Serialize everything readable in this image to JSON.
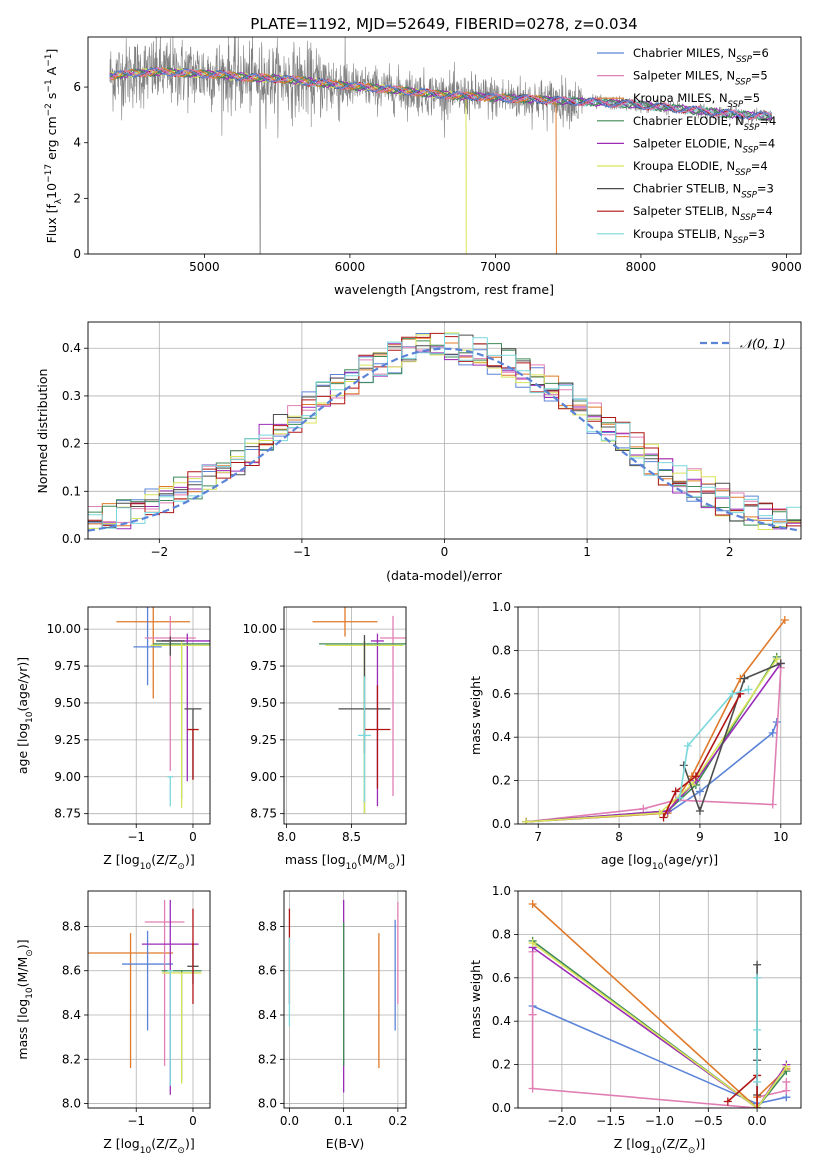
{
  "title": "PLATE=1192, MJD=52649, FIBERID=0278, z=0.034",
  "colors": {
    "Chabrier MILES": "#5b84d8",
    "Salpeter MILES": "#e07fb4",
    "Kroupa MILES": "#e07a2a",
    "Chabrier ELODIE": "#3f8a57",
    "Salpeter ELODIE": "#9b2cb8",
    "Kroupa ELODIE": "#d8e45a",
    "Chabrier STELIB": "#4d4d4d",
    "Salpeter STELIB": "#b01515",
    "Kroupa STELIB": "#7ad8dc",
    "data": "#808080",
    "gaussian": "#5b84d8",
    "grid": "#b0b0b0"
  },
  "chart_data": [
    {
      "id": "spectrum",
      "type": "line",
      "title": "PLATE=1192, MJD=52649, FIBERID=0278, z=0.034",
      "xlabel": "wavelength [Angstrom, rest frame]",
      "ylabel_parts": [
        "Flux [",
        "f",
        "λ",
        "10",
        "−17",
        " erg cm",
        "−2",
        " s",
        "−1",
        " A",
        "−1",
        "]"
      ],
      "xlim": [
        4200,
        9100
      ],
      "ylim": [
        0,
        7.8
      ],
      "xticks": [
        5000,
        6000,
        7000,
        8000,
        9000
      ],
      "yticks": [
        0,
        2,
        4,
        6
      ],
      "legend_position": "top-right",
      "legend": [
        {
          "model": "Chabrier MILES",
          "label": "Chabrier MILES, N",
          "sub": "SSP",
          "value": "=6"
        },
        {
          "model": "Salpeter MILES",
          "label": "Salpeter MILES, N",
          "sub": "SSP",
          "value": "=5"
        },
        {
          "model": "Kroupa MILES",
          "label": "Kroupa MILES, N",
          "sub": "SSP",
          "value": "=5"
        },
        {
          "model": "Chabrier ELODIE",
          "label": "Chabrier ELODIE, N",
          "sub": "SSP",
          "value": "=4"
        },
        {
          "model": "Salpeter ELODIE",
          "label": "Salpeter ELODIE, N",
          "sub": "SSP",
          "value": "=4"
        },
        {
          "model": "Kroupa ELODIE",
          "label": "Kroupa ELODIE, N",
          "sub": "SSP",
          "value": "=4"
        },
        {
          "model": "Chabrier STELIB",
          "label": "Chabrier STELIB, N",
          "sub": "SSP",
          "value": "=3"
        },
        {
          "model": "Salpeter STELIB",
          "label": "Salpeter STELIB, N",
          "sub": "SSP",
          "value": "=4"
        },
        {
          "model": "Kroupa STELIB",
          "label": "Kroupa STELIB, N",
          "sub": "SSP",
          "value": "=3"
        }
      ],
      "continuum_wavelength": [
        4350,
        4500,
        4700,
        4900,
        5100,
        5300,
        5500,
        5700,
        5900,
        6100,
        6300,
        6500,
        6700,
        6900,
        7100,
        7300,
        7500,
        7700,
        7900,
        8100,
        8300,
        8500,
        8700,
        8900
      ],
      "continuum_flux": [
        6.4,
        6.5,
        6.55,
        6.5,
        6.45,
        6.35,
        6.3,
        6.2,
        6.1,
        6.0,
        5.9,
        5.8,
        5.7,
        5.65,
        5.6,
        5.55,
        5.5,
        5.45,
        5.4,
        5.3,
        5.2,
        5.1,
        5.0,
        4.95
      ],
      "model_cutoffs": {
        "Kroupa ELODIE": 6800,
        "Kroupa MILES": 7420
      }
    },
    {
      "id": "residuals",
      "type": "histogram",
      "xlabel": "(data-model)/error",
      "ylabel": "Normed distribution",
      "xlim": [
        -2.5,
        2.5
      ],
      "ylim": [
        0,
        0.455
      ],
      "xticks": [
        -2,
        -1,
        0,
        1,
        2
      ],
      "yticks": [
        0.0,
        0.1,
        0.2,
        0.3,
        0.4
      ],
      "legend_position": "top-right",
      "legend": [
        {
          "label": "𝒩(0, 1)",
          "style": "dashed"
        }
      ],
      "bin_width": 0.1
    },
    {
      "id": "age-vs-Z",
      "type": "errorbar",
      "xlabel_parts": [
        "Z [log",
        "10",
        "(Z/Z",
        "⊙",
        ")]"
      ],
      "ylabel_parts": [
        "age  [log",
        "10",
        "(age/yr)]"
      ],
      "xlim": [
        -1.85,
        0.3
      ],
      "ylim": [
        8.68,
        10.15
      ],
      "xticks": [
        -1,
        0
      ],
      "yticks": [
        8.75,
        9.0,
        9.25,
        9.5,
        9.75,
        10.0
      ],
      "points": [
        {
          "model": "Kroupa MILES",
          "x": -0.7,
          "xerr": 0.65,
          "y": 10.05,
          "yerr_lo": 0.52,
          "yerr_hi": 0.1
        },
        {
          "model": "Chabrier MILES",
          "x": -0.8,
          "xerr": 0.25,
          "y": 9.88,
          "yerr_lo": 0.26,
          "yerr_hi": 0.27
        },
        {
          "model": "Salpeter MILES",
          "x": -0.4,
          "xerr": 0.45,
          "y": 9.94,
          "yerr_lo": 0.9,
          "yerr_hi": 0.15
        },
        {
          "model": "Salpeter ELODIE",
          "x": -0.1,
          "xerr": 0.45,
          "y": 9.92,
          "yerr_lo": 0.95,
          "yerr_hi": 0.05
        },
        {
          "model": "Chabrier ELODIE",
          "x": -0.2,
          "xerr": 0.5,
          "y": 9.9,
          "yerr_lo": 1.05,
          "yerr_hi": 0.0
        },
        {
          "model": "Kroupa ELODIE",
          "x": -0.2,
          "xerr": 0.55,
          "y": 9.89,
          "yerr_lo": 1.1,
          "yerr_hi": 0.02
        },
        {
          "model": "Chabrier STELIB",
          "x": -0.4,
          "xerr": 0.25,
          "y": 9.92,
          "yerr_lo": 0.1,
          "yerr_hi": 0.03
        },
        {
          "model": "Chabrier STELIB",
          "x": 0.0,
          "xerr": 0.15,
          "y": 9.46,
          "yerr_lo": 0.48,
          "yerr_hi": 0.0
        },
        {
          "model": "Salpeter STELIB",
          "x": 0.0,
          "xerr": 0.1,
          "y": 9.32,
          "yerr_lo": 0.34,
          "yerr_hi": 0.0
        },
        {
          "model": "Kroupa STELIB",
          "x": -0.4,
          "xerr": 0.05,
          "y": 9.0,
          "yerr_lo": 0.2,
          "yerr_hi": 0.0
        }
      ]
    },
    {
      "id": "age-vs-mass",
      "type": "errorbar",
      "xlabel_parts": [
        "mass [log",
        "10",
        "(M/M",
        "⊙",
        ")]"
      ],
      "ylabel_parts": [],
      "xlim": [
        7.98,
        8.92
      ],
      "ylim": [
        8.68,
        10.15
      ],
      "xticks": [
        8.0,
        8.5
      ],
      "yticks": [
        8.75,
        9.0,
        9.25,
        9.5,
        9.75,
        10.0
      ],
      "points": [
        {
          "model": "Kroupa MILES",
          "x": 8.45,
          "xerr": 0.25,
          "y": 10.05,
          "yerr_lo": 0.1,
          "yerr_hi": 0.1
        },
        {
          "model": "Salpeter MILES",
          "x": 8.82,
          "xerr": 0.1,
          "y": 9.94,
          "yerr_lo": 1.07,
          "yerr_hi": 0.15
        },
        {
          "model": "Salpeter ELODIE",
          "x": 8.7,
          "xerr": 0.05,
          "y": 9.92,
          "yerr_lo": 1.12,
          "yerr_hi": 0.05
        },
        {
          "model": "Chabrier ELODIE",
          "x": 8.6,
          "xerr": 0.35,
          "y": 9.9,
          "yerr_lo": 1.15,
          "yerr_hi": 0.02
        },
        {
          "model": "Kroupa ELODIE",
          "x": 8.6,
          "xerr": 0.3,
          "y": 9.89,
          "yerr_lo": 1.14,
          "yerr_hi": 0.02
        },
        {
          "model": "Chabrier STELIB",
          "x": 8.6,
          "xerr": 0.2,
          "y": 9.46,
          "yerr_lo": 0.3,
          "yerr_hi": 0.5
        },
        {
          "model": "Salpeter STELIB",
          "x": 8.7,
          "xerr": 0.1,
          "y": 9.32,
          "yerr_lo": 0.4,
          "yerr_hi": 0.3
        },
        {
          "model": "Kroupa STELIB",
          "x": 8.6,
          "xerr": 0.05,
          "y": 9.28,
          "yerr_lo": 0.45,
          "yerr_hi": 0.4
        }
      ]
    },
    {
      "id": "mass-weight-vs-age",
      "type": "line",
      "xlabel_parts": [
        "age  [log",
        "10",
        "(age/yr)]"
      ],
      "ylabel": "mass weight",
      "xlim": [
        6.75,
        10.25
      ],
      "ylim": [
        0,
        1.0
      ],
      "xticks": [
        7,
        8,
        9,
        10
      ],
      "yticks": [
        0.0,
        0.2,
        0.4,
        0.6,
        0.8,
        1.0
      ],
      "series": [
        {
          "model": "Chabrier MILES",
          "x": [
            6.85,
            8.6,
            9.0,
            9.9,
            9.95
          ],
          "y": [
            0.01,
            0.05,
            0.15,
            0.42,
            0.47
          ]
        },
        {
          "model": "Salpeter MILES",
          "x": [
            6.85,
            8.3,
            8.7,
            9.9,
            10.0
          ],
          "y": [
            0.01,
            0.07,
            0.11,
            0.09,
            0.72
          ]
        },
        {
          "model": "Kroupa MILES",
          "x": [
            6.85,
            8.6,
            8.9,
            9.5,
            10.05
          ],
          "y": [
            0.01,
            0.05,
            0.22,
            0.67,
            0.94
          ]
        },
        {
          "model": "Chabrier ELODIE",
          "x": [
            6.85,
            8.6,
            8.95,
            9.95
          ],
          "y": [
            0.01,
            0.06,
            0.18,
            0.77
          ]
        },
        {
          "model": "Salpeter ELODIE",
          "x": [
            6.85,
            8.6,
            8.95,
            10.0
          ],
          "y": [
            0.01,
            0.06,
            0.2,
            0.74
          ]
        },
        {
          "model": "Kroupa ELODIE",
          "x": [
            6.85,
            8.5,
            8.9,
            9.95
          ],
          "y": [
            0.01,
            0.05,
            0.18,
            0.76
          ]
        },
        {
          "model": "Chabrier STELIB",
          "x": [
            8.8,
            9.0,
            9.55,
            10.0
          ],
          "y": [
            0.27,
            0.06,
            0.67,
            0.74
          ]
        },
        {
          "model": "Salpeter STELIB",
          "x": [
            8.55,
            8.7,
            8.95,
            9.5
          ],
          "y": [
            0.03,
            0.15,
            0.22,
            0.6
          ]
        },
        {
          "model": "Kroupa STELIB",
          "x": [
            8.75,
            8.85,
            9.4,
            9.6
          ],
          "y": [
            0.12,
            0.36,
            0.6,
            0.62
          ]
        }
      ]
    },
    {
      "id": "mass-vs-Z",
      "type": "errorbar",
      "xlabel_parts": [
        "Z [log",
        "10",
        "(Z/Z",
        "⊙",
        ")]"
      ],
      "ylabel_parts": [
        "mass [log",
        "10",
        "(M/M",
        "⊙",
        ")]"
      ],
      "xlim": [
        -1.85,
        0.3
      ],
      "ylim": [
        7.98,
        8.96
      ],
      "xticks": [
        -1,
        0
      ],
      "yticks": [
        8.0,
        8.2,
        8.4,
        8.6,
        8.8
      ],
      "points": [
        {
          "model": "Kroupa MILES",
          "x": -1.1,
          "xerr": 0.75,
          "y": 8.68,
          "yerr_lo": 0.52,
          "yerr_hi": 0.09
        },
        {
          "model": "Chabrier MILES",
          "x": -0.8,
          "xerr": 0.45,
          "y": 8.63,
          "yerr_lo": 0.3,
          "yerr_hi": 0.15
        },
        {
          "model": "Salpeter MILES",
          "x": -0.5,
          "xerr": 0.35,
          "y": 8.82,
          "yerr_lo": 0.65,
          "yerr_hi": 0.1
        },
        {
          "model": "Salpeter ELODIE",
          "x": -0.4,
          "xerr": 0.5,
          "y": 8.72,
          "yerr_lo": 0.68,
          "yerr_hi": 0.2
        },
        {
          "model": "Chabrier ELODIE",
          "x": -0.2,
          "xerr": 0.35,
          "y": 8.6,
          "yerr_lo": 0.5,
          "yerr_hi": 0.0
        },
        {
          "model": "Kroupa ELODIE",
          "x": -0.2,
          "xerr": 0.35,
          "y": 8.59,
          "yerr_lo": 0.5,
          "yerr_hi": 0.0
        },
        {
          "model": "Chabrier STELIB",
          "x": 0.0,
          "xerr": 0.1,
          "y": 8.62,
          "yerr_lo": 0.08,
          "yerr_hi": 0.1
        },
        {
          "model": "Salpeter STELIB",
          "x": 0.0,
          "xerr": 0.02,
          "y": 8.72,
          "yerr_lo": 0.27,
          "yerr_hi": 0.16
        },
        {
          "model": "Kroupa STELIB",
          "x": -0.4,
          "xerr": 0.05,
          "y": 8.6,
          "yerr_lo": 0.52,
          "yerr_hi": 0.0
        }
      ]
    },
    {
      "id": "mass-vs-EBV",
      "type": "errorbar",
      "xlabel": "E(B-V)",
      "ylabel_parts": [],
      "xlim": [
        -0.01,
        0.215
      ],
      "ylim": [
        7.98,
        8.96
      ],
      "xticks": [
        0.0,
        0.1,
        0.2
      ],
      "yticks": [
        8.0,
        8.2,
        8.4,
        8.6,
        8.8
      ],
      "points": [
        {
          "model": "Chabrier MILES",
          "x": 0.195,
          "xerr": 0.0,
          "y": 8.63,
          "yerr_lo": 0.3,
          "yerr_hi": 0.2
        },
        {
          "model": "Salpeter MILES",
          "x": 0.2,
          "xerr": 0.0,
          "y": 8.75,
          "yerr_lo": 0.3,
          "yerr_hi": 0.16
        },
        {
          "model": "Kroupa MILES",
          "x": 0.165,
          "xerr": 0.0,
          "y": 8.55,
          "yerr_lo": 0.39,
          "yerr_hi": 0.22
        },
        {
          "model": "Salpeter ELODIE",
          "x": 0.1,
          "xerr": 0.0,
          "y": 8.6,
          "yerr_lo": 0.55,
          "yerr_hi": 0.32
        },
        {
          "model": "Chabrier ELODIE",
          "x": 0.1,
          "xerr": 0.0,
          "y": 8.62,
          "yerr_lo": 0.45,
          "yerr_hi": 0.2
        },
        {
          "model": "Salpeter STELIB",
          "x": 0.0,
          "xerr": 0.0,
          "y": 8.7,
          "yerr_lo": 0.25,
          "yerr_hi": 0.18
        },
        {
          "model": "Kroupa STELIB",
          "x": 0.0,
          "xerr": 0.0,
          "y": 8.6,
          "yerr_lo": 0.25,
          "yerr_hi": 0.15
        }
      ]
    },
    {
      "id": "mass-weight-vs-Z",
      "type": "line",
      "xlabel_parts": [
        "Z [log",
        "10",
        "(Z/Z",
        "⊙",
        ")]"
      ],
      "ylabel": "mass weight",
      "xlim": [
        -2.45,
        0.45
      ],
      "ylim": [
        0,
        1.0
      ],
      "xticks": [
        -2.0,
        -1.5,
        -1.0,
        -0.5,
        0.0
      ],
      "yticks": [
        0.0,
        0.2,
        0.4,
        0.6,
        0.8,
        1.0
      ],
      "series": [
        {
          "model": "Chabrier MILES",
          "x": [
            -2.3,
            0.0,
            0.3,
            0.3
          ],
          "y": [
            0.47,
            0.02,
            0.05,
            0.05
          ]
        },
        {
          "model": "Salpeter MILES",
          "x": [
            -2.3,
            -2.3,
            -2.3,
            0.0,
            0.0,
            0.0,
            0.3,
            0.3
          ],
          "y": [
            0.72,
            0.43,
            0.09,
            0.0,
            0.0,
            0.05,
            0.08,
            0.12
          ]
        },
        {
          "model": "Kroupa MILES",
          "x": [
            -2.3,
            0.0,
            0.0,
            0.3
          ],
          "y": [
            0.94,
            0.0,
            0.05,
            0.18
          ]
        },
        {
          "model": "Chabrier ELODIE",
          "x": [
            -2.3,
            0.0,
            0.3
          ],
          "y": [
            0.77,
            0.0,
            0.17
          ]
        },
        {
          "model": "Salpeter ELODIE",
          "x": [
            -2.3,
            0.0,
            0.3
          ],
          "y": [
            0.74,
            0.0,
            0.2
          ]
        },
        {
          "model": "Kroupa ELODIE",
          "x": [
            -2.3,
            0.0,
            0.3
          ],
          "y": [
            0.76,
            0.0,
            0.19
          ]
        },
        {
          "model": "Chabrier STELIB",
          "x": [
            0.0,
            0.0,
            0.0,
            0.0
          ],
          "y": [
            0.66,
            0.27,
            0.22,
            0.06
          ]
        },
        {
          "model": "Salpeter STELIB",
          "x": [
            -0.3,
            0.0,
            0.0
          ],
          "y": [
            0.03,
            0.15,
            0.0
          ]
        },
        {
          "model": "Kroupa STELIB",
          "x": [
            0.0,
            0.0,
            0.0
          ],
          "y": [
            0.6,
            0.36,
            0.12
          ]
        }
      ]
    }
  ]
}
